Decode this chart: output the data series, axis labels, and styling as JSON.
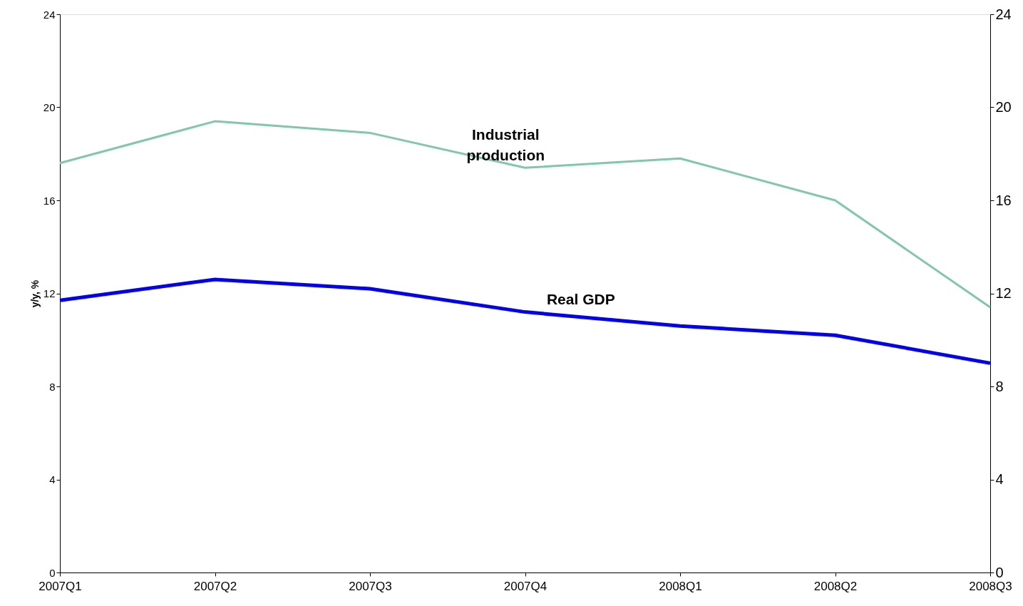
{
  "chart_data": {
    "type": "line",
    "ylabel": "y/y, %",
    "categories": [
      "2007Q1",
      "2007Q2",
      "2007Q3",
      "2007Q4",
      "2008Q1",
      "2008Q2",
      "2008Q3"
    ],
    "series": [
      {
        "name": "Industrial production",
        "color": "#7fc8a9",
        "values": [
          17.6,
          19.4,
          18.9,
          17.4,
          17.8,
          16.0,
          11.4
        ]
      },
      {
        "name": "Real GDP",
        "color": "#0000ff",
        "values": [
          11.7,
          12.6,
          12.2,
          11.2,
          10.6,
          10.2,
          9.0
        ]
      }
    ],
    "ylim": [
      0,
      24
    ],
    "yticks": [
      0,
      4,
      8,
      12,
      16,
      20,
      24
    ],
    "y2lim": [
      0,
      24
    ],
    "y2ticks": [
      0,
      4,
      8,
      12,
      16,
      20,
      24
    ],
    "grid": false,
    "marker": "none",
    "line_style": "solid"
  }
}
